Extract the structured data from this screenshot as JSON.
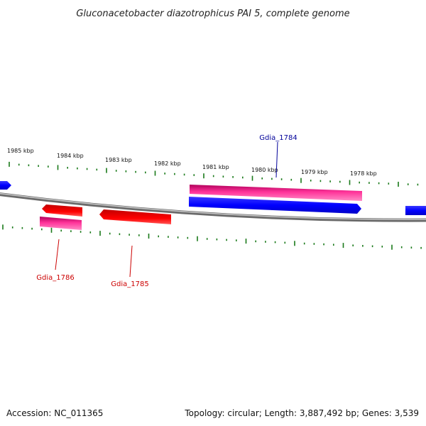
{
  "title": "Gluconacetobacter diazotrophicus PAI 5, complete genome",
  "footer": {
    "accession": "Accession: NC_011365",
    "summary": "Topology: circular; Length: 3,887,492 bp; Genes: 3,539"
  },
  "colors": {
    "backbone": "#808080",
    "tick": "#1a7a1a",
    "forward_cds": "#0000ff",
    "reverse_cds": "#ff0000",
    "gene_feature": "#ff3399",
    "forward_label": "#000099",
    "reverse_label": "#cc0000"
  },
  "scale": {
    "ticks": [
      {
        "kbp": 1985,
        "label": "1985 kbp"
      },
      {
        "kbp": 1984,
        "label": "1984 kbp"
      },
      {
        "kbp": 1983,
        "label": "1983 kbp"
      },
      {
        "kbp": 1982,
        "label": "1982 kbp"
      },
      {
        "kbp": 1981,
        "label": "1981 kbp"
      },
      {
        "kbp": 1980,
        "label": "1980 kbp"
      },
      {
        "kbp": 1979,
        "label": "1979 kbp"
      },
      {
        "kbp": 1978,
        "label": "1978 kbp"
      }
    ]
  },
  "labels": [
    {
      "name": "Gdia_1784",
      "strand": "forward"
    },
    {
      "name": "Gdia_1786",
      "strand": "reverse"
    },
    {
      "name": "Gdia_1785",
      "strand": "reverse"
    }
  ]
}
